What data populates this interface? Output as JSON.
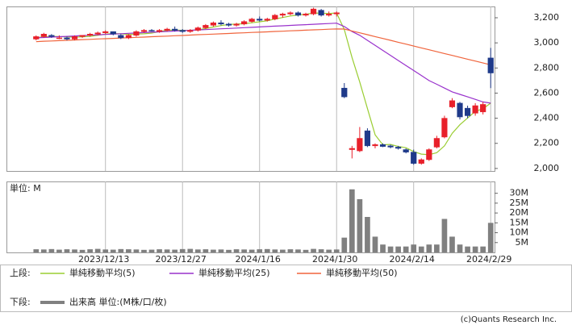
{
  "chart_data": {
    "type": "candlestick",
    "categories": [
      null,
      null,
      null,
      null,
      null,
      null,
      null,
      null,
      null,
      "2023/12/13",
      null,
      null,
      null,
      null,
      null,
      null,
      null,
      null,
      null,
      "2023/12/27",
      null,
      null,
      null,
      null,
      null,
      null,
      null,
      null,
      null,
      "2024/1/16",
      null,
      null,
      null,
      null,
      null,
      null,
      null,
      null,
      null,
      "2024/1/30",
      null,
      null,
      null,
      null,
      null,
      null,
      null,
      null,
      null,
      "2024/2/14",
      null,
      null,
      null,
      null,
      null,
      null,
      null,
      null,
      null,
      "2024/2/29"
    ],
    "open": [
      3030,
      3050,
      3060,
      3040,
      3040,
      3030,
      3050,
      3060,
      3070,
      3080,
      3090,
      3060,
      3040,
      3060,
      3090,
      3100,
      3090,
      3100,
      3110,
      3100,
      3090,
      3100,
      3120,
      3140,
      3160,
      3150,
      3140,
      3150,
      3170,
      3190,
      3180,
      3190,
      3220,
      3230,
      3240,
      3220,
      3230,
      3260,
      3220,
      3230,
      2640,
      2150,
      2140,
      2300,
      2180,
      2190,
      2180,
      2170,
      2150,
      2130,
      2040,
      2070,
      2170,
      2250,
      2490,
      2520,
      2480,
      2440,
      2450,
      2880
    ],
    "high": [
      3060,
      3080,
      3070,
      3060,
      3050,
      3060,
      3060,
      3080,
      3090,
      3100,
      3090,
      3070,
      3070,
      3100,
      3110,
      3110,
      3110,
      3120,
      3130,
      3110,
      3110,
      3130,
      3150,
      3170,
      3180,
      3160,
      3160,
      3180,
      3200,
      3210,
      3200,
      3230,
      3240,
      3250,
      3250,
      3240,
      3280,
      3270,
      3250,
      3250,
      2680,
      2180,
      2330,
      2320,
      2200,
      2200,
      2190,
      2180,
      2160,
      2150,
      2080,
      2160,
      2260,
      2420,
      2560,
      2530,
      2500,
      2520,
      2530,
      2960
    ],
    "low": [
      3020,
      3040,
      3040,
      3030,
      3020,
      3020,
      3040,
      3050,
      3060,
      3070,
      3060,
      3030,
      3030,
      3050,
      3080,
      3090,
      3080,
      3090,
      3090,
      3080,
      3080,
      3090,
      3110,
      3130,
      3140,
      3130,
      3130,
      3140,
      3160,
      3170,
      3170,
      3180,
      3200,
      3220,
      3210,
      3210,
      3220,
      3210,
      3210,
      3210,
      2560,
      2080,
      2130,
      2170,
      2160,
      2170,
      2160,
      2150,
      2120,
      2030,
      2030,
      2060,
      2160,
      2240,
      2480,
      2390,
      2400,
      2420,
      2430,
      2640
    ],
    "close": [
      3050,
      3070,
      3050,
      3040,
      3030,
      3050,
      3060,
      3070,
      3080,
      3090,
      3070,
      3040,
      3060,
      3090,
      3100,
      3095,
      3100,
      3110,
      3100,
      3090,
      3100,
      3120,
      3140,
      3160,
      3150,
      3140,
      3150,
      3170,
      3190,
      3180,
      3190,
      3220,
      3230,
      3240,
      3220,
      3230,
      3270,
      3220,
      3230,
      3240,
      2570,
      2160,
      2240,
      2180,
      2190,
      2175,
      2170,
      2160,
      2130,
      2040,
      2070,
      2150,
      2240,
      2400,
      2540,
      2410,
      2420,
      2500,
      2510,
      2760
    ],
    "up_color": "#e8202a",
    "down_color": "#1f3a8a",
    "ylim": [
      1980,
      3290
    ],
    "yticks": [
      {
        "value": 2000,
        "label": "2,000"
      },
      {
        "value": 2200,
        "label": "2,200"
      },
      {
        "value": 2400,
        "label": "2,400"
      },
      {
        "value": 2600,
        "label": "2,600"
      },
      {
        "value": 2800,
        "label": "2,800"
      },
      {
        "value": 3000,
        "label": "3,000"
      },
      {
        "value": 3200,
        "label": "3,200"
      }
    ],
    "series": [
      {
        "name": "単純移動平均(5)",
        "color": "#9acd32",
        "values": [
          3040,
          3048,
          3052,
          3050,
          3048,
          3046,
          3048,
          3052,
          3060,
          3070,
          3074,
          3072,
          3068,
          3070,
          3072,
          3078,
          3090,
          3100,
          3102,
          3100,
          3100,
          3104,
          3114,
          3126,
          3138,
          3146,
          3150,
          3152,
          3160,
          3168,
          3176,
          3190,
          3202,
          3214,
          3222,
          3228,
          3238,
          3236,
          3234,
          3238,
          3106,
          2884,
          2688,
          2478,
          2268,
          2189,
          2191,
          2175,
          2165,
          2135,
          2114,
          2110,
          2126,
          2180,
          2280,
          2348,
          2402,
          2454,
          2476,
          2520
        ]
      },
      {
        "name": "単純移動平均(25)",
        "color": "#9932cc",
        "values": [
          3040,
          3043,
          3046,
          3049,
          3052,
          3055,
          3058,
          3061,
          3064,
          3067,
          3070,
          3073,
          3076,
          3079,
          3082,
          3085,
          3088,
          3091,
          3094,
          3097,
          3100,
          3103,
          3106,
          3109,
          3112,
          3115,
          3118,
          3121,
          3124,
          3127,
          3130,
          3133,
          3136,
          3139,
          3142,
          3145,
          3148,
          3151,
          3154,
          3157,
          3130,
          3090,
          3060,
          3020,
          2980,
          2940,
          2900,
          2860,
          2820,
          2780,
          2740,
          2700,
          2670,
          2640,
          2610,
          2590,
          2570,
          2550,
          2530,
          2520
        ]
      },
      {
        "name": "単純移動平均(50)",
        "color": "#f0643c",
        "values": [
          3010,
          3013,
          3015,
          3018,
          3020,
          3023,
          3026,
          3028,
          3031,
          3033,
          3036,
          3039,
          3041,
          3044,
          3046,
          3049,
          3052,
          3054,
          3057,
          3059,
          3062,
          3065,
          3067,
          3070,
          3072,
          3075,
          3078,
          3080,
          3083,
          3085,
          3088,
          3091,
          3093,
          3096,
          3098,
          3101,
          3104,
          3106,
          3109,
          3111,
          3110,
          3095,
          3080,
          3065,
          3050,
          3035,
          3020,
          3005,
          2990,
          2975,
          2960,
          2945,
          2930,
          2915,
          2900,
          2885,
          2870,
          2855,
          2840,
          2825
        ]
      }
    ],
    "volume": {
      "unit_label": "単位: M",
      "color": "#808080",
      "values": [
        1.6,
        1.5,
        1.7,
        1.4,
        1.6,
        1.5,
        1.3,
        1.6,
        1.8,
        1.5,
        1.4,
        1.7,
        1.6,
        1.5,
        1.3,
        1.4,
        1.6,
        1.5,
        1.4,
        1.7,
        1.8,
        1.5,
        1.6,
        1.4,
        1.5,
        1.3,
        1.6,
        1.5,
        1.4,
        1.6,
        1.7,
        1.5,
        1.4,
        1.6,
        1.5,
        1.3,
        1.8,
        1.6,
        1.4,
        1.5,
        7.5,
        32,
        27,
        18,
        8,
        4,
        3,
        3,
        3,
        4,
        3,
        4,
        4,
        17,
        8,
        4,
        3,
        3,
        3,
        15
      ],
      "ylim": [
        0,
        36
      ],
      "yticks": [
        {
          "value": 5,
          "label": "5M"
        },
        {
          "value": 10,
          "label": "10M"
        },
        {
          "value": 15,
          "label": "15M"
        },
        {
          "value": 20,
          "label": "20M"
        },
        {
          "value": 25,
          "label": "25M"
        },
        {
          "value": 30,
          "label": "30M"
        }
      ]
    },
    "legend_upper_label": "上段:",
    "legend_lower_label": "下段:",
    "volume_legend": "出来高 単位:(M株/口/枚)",
    "copyright": "(c)Quants Research Inc."
  }
}
